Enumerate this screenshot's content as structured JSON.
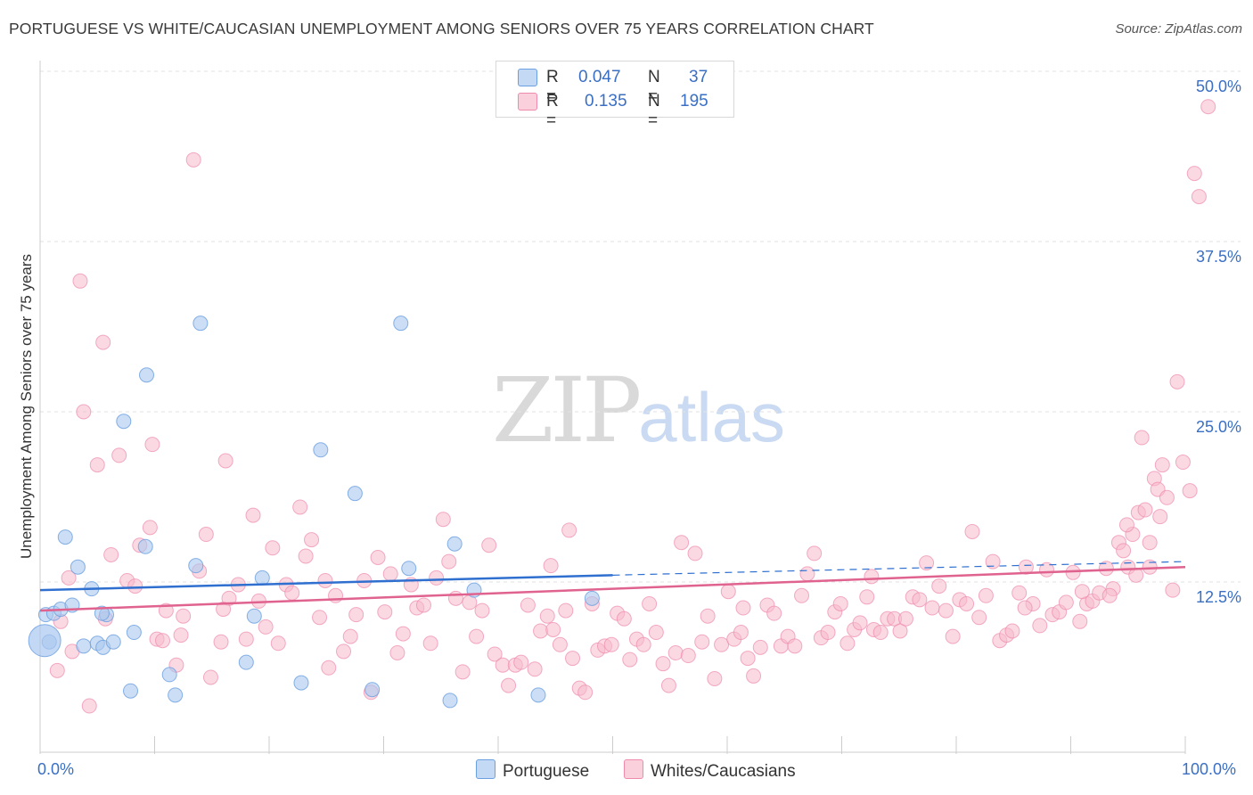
{
  "header": {
    "title": "PORTUGUESE VS WHITE/CAUCASIAN UNEMPLOYMENT AMONG SENIORS OVER 75 YEARS CORRELATION CHART",
    "source": "Source: ZipAtlas.com"
  },
  "watermark": {
    "zip": "ZIP",
    "atlas": "atlas"
  },
  "legend_top": {
    "rows": [
      {
        "r_label": "R =",
        "r_value": "0.047",
        "n_label": "N =",
        "n_value": "37",
        "color": "#aac8ef"
      },
      {
        "r_label": "R =",
        "r_value": "0.135",
        "n_label": "N =",
        "n_value": "195",
        "color": "#f7b9cc"
      }
    ]
  },
  "legend_bottom": [
    {
      "label": "Portuguese",
      "color": "#aac8ef"
    },
    {
      "label": "Whites/Caucasians",
      "color": "#f7b9cc"
    }
  ],
  "chart_data": {
    "type": "scatter",
    "title": "PORTUGUESE VS WHITE/CAUCASIAN UNEMPLOYMENT AMONG SENIORS OVER 75 YEARS CORRELATION CHART",
    "xlabel": "",
    "ylabel": "Unemployment Among Seniors over 75 years",
    "xlim": [
      0,
      100
    ],
    "ylim": [
      0,
      50
    ],
    "x_tick_labels": [
      "0.0%",
      "100.0%"
    ],
    "y_tick_labels": [
      "12.5%",
      "25.0%",
      "37.5%",
      "50.0%"
    ],
    "y_ticks": [
      12.5,
      25.0,
      37.5,
      50.0
    ],
    "grid": true,
    "colors": {
      "blue": "#6a9fe0",
      "blue_fill": "#aac8ef",
      "blue_line": "#2f6fcf",
      "pink": "#ee8aac",
      "pink_fill": "#f7b9cc",
      "pink_line": "#e0628e"
    },
    "series": [
      {
        "name": "Portuguese",
        "trend": {
          "x0": 0,
          "y0": 11.9,
          "x1": 50,
          "y1": 13.0,
          "dash_x1": 100,
          "dash_y1": 14.0
        },
        "points": [
          [
            0.5,
            10.1
          ],
          [
            1.2,
            10.2
          ],
          [
            1.8,
            10.5
          ],
          [
            2.8,
            10.8
          ],
          [
            3.3,
            13.6
          ],
          [
            4.5,
            12.0
          ],
          [
            3.8,
            7.8
          ],
          [
            5.0,
            8.0
          ],
          [
            5.5,
            7.7
          ],
          [
            5.8,
            10.1
          ],
          [
            6.4,
            8.1
          ],
          [
            7.3,
            24.3
          ],
          [
            7.9,
            4.5
          ],
          [
            8.2,
            8.8
          ],
          [
            9.2,
            15.1
          ],
          [
            9.3,
            27.7
          ],
          [
            11.3,
            5.7
          ],
          [
            11.8,
            4.2
          ],
          [
            13.6,
            13.7
          ],
          [
            14.0,
            31.5
          ],
          [
            18.7,
            10.0
          ],
          [
            18.0,
            6.6
          ],
          [
            19.4,
            12.8
          ],
          [
            22.8,
            5.1
          ],
          [
            24.5,
            22.2
          ],
          [
            27.5,
            19.0
          ],
          [
            29.0,
            4.6
          ],
          [
            32.2,
            13.5
          ],
          [
            31.5,
            31.5
          ],
          [
            35.8,
            3.8
          ],
          [
            36.2,
            15.3
          ],
          [
            37.9,
            11.9
          ],
          [
            43.5,
            4.2
          ],
          [
            48.2,
            11.3
          ],
          [
            2.2,
            15.8
          ],
          [
            5.4,
            10.2
          ],
          [
            0.8,
            8.1
          ]
        ],
        "big_point": [
          0.4,
          8.2
        ]
      },
      {
        "name": "Whites/Caucasians",
        "trend": {
          "x0": 0,
          "y0": 10.4,
          "x1": 100,
          "y1": 13.6
        },
        "points": [
          [
            1.5,
            6.0
          ],
          [
            1.8,
            9.6
          ],
          [
            2.5,
            12.8
          ],
          [
            2.8,
            7.4
          ],
          [
            3.5,
            34.6
          ],
          [
            3.8,
            25.0
          ],
          [
            4.3,
            3.4
          ],
          [
            5.0,
            21.1
          ],
          [
            5.5,
            30.1
          ],
          [
            5.7,
            9.8
          ],
          [
            6.2,
            14.5
          ],
          [
            6.9,
            21.8
          ],
          [
            7.6,
            12.6
          ],
          [
            8.3,
            12.2
          ],
          [
            8.7,
            15.2
          ],
          [
            9.6,
            16.5
          ],
          [
            9.8,
            22.6
          ],
          [
            10.2,
            8.3
          ],
          [
            10.7,
            8.2
          ],
          [
            11.0,
            10.4
          ],
          [
            11.9,
            6.4
          ],
          [
            12.3,
            8.6
          ],
          [
            12.5,
            10.0
          ],
          [
            13.4,
            43.5
          ],
          [
            13.9,
            13.3
          ],
          [
            14.5,
            16.0
          ],
          [
            14.9,
            5.5
          ],
          [
            15.8,
            8.1
          ],
          [
            16.2,
            21.4
          ],
          [
            16.5,
            11.3
          ],
          [
            17.3,
            12.3
          ],
          [
            18.0,
            8.3
          ],
          [
            18.6,
            17.4
          ],
          [
            19.1,
            11.1
          ],
          [
            19.7,
            9.2
          ],
          [
            20.3,
            15.0
          ],
          [
            20.8,
            8.0
          ],
          [
            21.5,
            12.3
          ],
          [
            22.0,
            11.7
          ],
          [
            22.7,
            18.0
          ],
          [
            23.2,
            14.4
          ],
          [
            23.7,
            15.6
          ],
          [
            24.4,
            9.9
          ],
          [
            24.9,
            12.6
          ],
          [
            25.2,
            6.2
          ],
          [
            25.8,
            11.5
          ],
          [
            26.5,
            7.4
          ],
          [
            27.1,
            8.5
          ],
          [
            27.6,
            10.1
          ],
          [
            28.3,
            12.6
          ],
          [
            28.9,
            4.4
          ],
          [
            29.5,
            14.3
          ],
          [
            30.1,
            10.3
          ],
          [
            30.6,
            13.1
          ],
          [
            31.2,
            7.3
          ],
          [
            31.7,
            8.7
          ],
          [
            32.4,
            12.3
          ],
          [
            32.9,
            10.6
          ],
          [
            33.5,
            10.8
          ],
          [
            34.1,
            8.0
          ],
          [
            34.6,
            12.8
          ],
          [
            35.2,
            17.1
          ],
          [
            35.7,
            14.0
          ],
          [
            36.3,
            11.3
          ],
          [
            36.9,
            5.9
          ],
          [
            37.5,
            11.0
          ],
          [
            38.1,
            8.5
          ],
          [
            38.6,
            10.4
          ],
          [
            39.2,
            15.2
          ],
          [
            39.7,
            7.2
          ],
          [
            40.4,
            6.4
          ],
          [
            40.9,
            4.9
          ],
          [
            41.5,
            6.4
          ],
          [
            42.0,
            6.6
          ],
          [
            42.6,
            10.8
          ],
          [
            43.2,
            6.1
          ],
          [
            43.7,
            8.9
          ],
          [
            44.3,
            10.0
          ],
          [
            44.8,
            9.0
          ],
          [
            45.4,
            7.9
          ],
          [
            45.9,
            10.4
          ],
          [
            46.5,
            6.9
          ],
          [
            47.1,
            4.7
          ],
          [
            47.6,
            4.4
          ],
          [
            48.2,
            10.9
          ],
          [
            48.7,
            7.5
          ],
          [
            49.3,
            7.8
          ],
          [
            49.9,
            7.9
          ],
          [
            50.4,
            10.2
          ],
          [
            51.0,
            9.8
          ],
          [
            51.5,
            6.8
          ],
          [
            52.1,
            8.3
          ],
          [
            52.7,
            7.9
          ],
          [
            53.2,
            10.9
          ],
          [
            53.8,
            8.8
          ],
          [
            54.4,
            6.5
          ],
          [
            54.9,
            4.9
          ],
          [
            55.5,
            7.3
          ],
          [
            56.0,
            15.4
          ],
          [
            56.6,
            7.1
          ],
          [
            57.2,
            14.6
          ],
          [
            57.8,
            8.1
          ],
          [
            58.3,
            10.0
          ],
          [
            58.9,
            5.4
          ],
          [
            59.5,
            7.9
          ],
          [
            60.1,
            11.8
          ],
          [
            60.6,
            8.3
          ],
          [
            61.2,
            8.8
          ],
          [
            61.8,
            6.9
          ],
          [
            62.3,
            5.6
          ],
          [
            62.9,
            7.7
          ],
          [
            63.5,
            10.8
          ],
          [
            64.1,
            10.2
          ],
          [
            64.7,
            7.8
          ],
          [
            65.3,
            8.5
          ],
          [
            65.9,
            7.8
          ],
          [
            66.5,
            11.5
          ],
          [
            67.0,
            13.1
          ],
          [
            67.6,
            14.6
          ],
          [
            68.2,
            8.4
          ],
          [
            68.8,
            8.8
          ],
          [
            69.4,
            10.3
          ],
          [
            69.9,
            10.9
          ],
          [
            70.5,
            8.0
          ],
          [
            71.1,
            9.0
          ],
          [
            71.6,
            9.5
          ],
          [
            72.2,
            11.4
          ],
          [
            72.8,
            9.0
          ],
          [
            73.4,
            8.8
          ],
          [
            74.0,
            9.8
          ],
          [
            74.6,
            9.8
          ],
          [
            75.1,
            8.9
          ],
          [
            75.6,
            9.8
          ],
          [
            76.2,
            11.4
          ],
          [
            76.8,
            11.2
          ],
          [
            77.4,
            13.9
          ],
          [
            77.9,
            10.6
          ],
          [
            78.5,
            12.2
          ],
          [
            79.1,
            10.4
          ],
          [
            79.7,
            8.5
          ],
          [
            80.3,
            11.2
          ],
          [
            80.9,
            10.9
          ],
          [
            81.4,
            16.2
          ],
          [
            82.0,
            9.9
          ],
          [
            82.6,
            11.5
          ],
          [
            83.2,
            14.0
          ],
          [
            83.8,
            8.2
          ],
          [
            84.4,
            8.6
          ],
          [
            84.9,
            8.9
          ],
          [
            85.5,
            11.7
          ],
          [
            86.1,
            13.6
          ],
          [
            86.7,
            10.9
          ],
          [
            87.3,
            9.3
          ],
          [
            87.9,
            13.4
          ],
          [
            88.4,
            10.1
          ],
          [
            89.0,
            10.3
          ],
          [
            89.6,
            11.0
          ],
          [
            90.2,
            13.2
          ],
          [
            90.8,
            9.6
          ],
          [
            91.4,
            10.9
          ],
          [
            91.9,
            11.1
          ],
          [
            92.5,
            11.7
          ],
          [
            93.1,
            13.5
          ],
          [
            93.7,
            12.0
          ],
          [
            94.2,
            15.4
          ],
          [
            94.6,
            14.8
          ],
          [
            95.0,
            13.6
          ],
          [
            95.4,
            16.0
          ],
          [
            95.9,
            17.6
          ],
          [
            96.2,
            23.1
          ],
          [
            96.5,
            17.8
          ],
          [
            96.9,
            13.6
          ],
          [
            97.3,
            20.1
          ],
          [
            97.6,
            19.3
          ],
          [
            98.0,
            21.1
          ],
          [
            98.4,
            18.7
          ],
          [
            98.9,
            11.9
          ],
          [
            99.3,
            27.2
          ],
          [
            99.8,
            21.3
          ],
          [
            100.4,
            19.2
          ],
          [
            100.8,
            42.5
          ],
          [
            101.2,
            40.8
          ],
          [
            102.0,
            47.4
          ],
          [
            46.2,
            16.3
          ],
          [
            44.6,
            13.7
          ],
          [
            93.4,
            11.5
          ],
          [
            95.7,
            13.0
          ],
          [
            94.9,
            16.7
          ],
          [
            96.9,
            15.4
          ],
          [
            91.0,
            11.8
          ],
          [
            97.8,
            17.3
          ],
          [
            16.0,
            10.5
          ],
          [
            72.6,
            12.9
          ],
          [
            86.0,
            10.6
          ],
          [
            61.4,
            10.6
          ]
        ]
      }
    ]
  }
}
